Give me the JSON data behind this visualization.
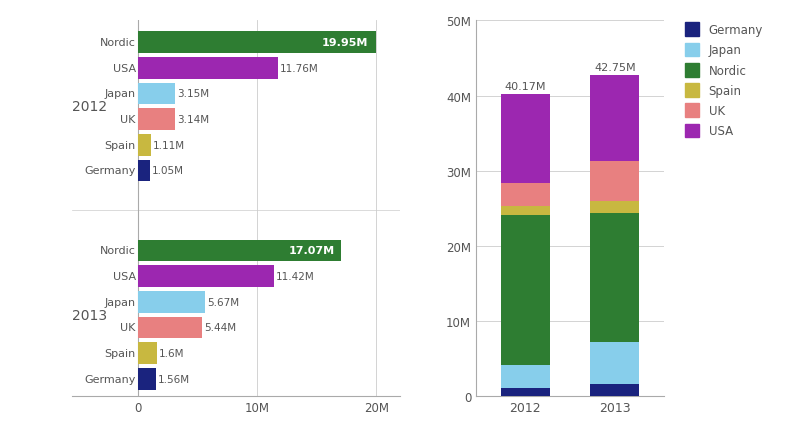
{
  "regions": [
    "Nordic",
    "USA",
    "Japan",
    "UK",
    "Spain",
    "Germany"
  ],
  "years": [
    "2012",
    "2013"
  ],
  "data": {
    "2012": {
      "Nordic": 19.95,
      "USA": 11.76,
      "Japan": 3.15,
      "UK": 3.14,
      "Spain": 1.11,
      "Germany": 1.05
    },
    "2013": {
      "Nordic": 17.07,
      "USA": 11.42,
      "Japan": 5.67,
      "UK": 5.44,
      "Spain": 1.6,
      "Germany": 1.56
    }
  },
  "colors": {
    "Nordic": "#2e7d32",
    "USA": "#9c27b0",
    "Japan": "#87ceeb",
    "UK": "#e88080",
    "Spain": "#c8b840",
    "Germany": "#1a237e"
  },
  "bar_labels": {
    "2012": {
      "Nordic": "19.95M",
      "USA": "11.76M",
      "Japan": "3.15M",
      "UK": "3.14M",
      "Spain": "1.11M",
      "Germany": "1.05M"
    },
    "2013": {
      "Nordic": "17.07M",
      "USA": "11.42M",
      "Japan": "5.67M",
      "UK": "5.44M",
      "Spain": "1.6M",
      "Germany": "1.56M"
    }
  },
  "stacked_totals": {
    "2012": "40.17M",
    "2013": "42.75M"
  },
  "stacked_total_vals": {
    "2012": 40.17,
    "2013": 42.75
  },
  "legend_order_left": [
    "Nordic",
    "USA",
    "Japan",
    "UK",
    "Spain",
    "Germany"
  ],
  "legend_order_right": [
    "Germany",
    "Japan",
    "Nordic",
    "Spain",
    "UK",
    "USA"
  ],
  "bg_color": "#ffffff",
  "grid_color": "#cccccc",
  "text_color": "#555555",
  "stack_order": [
    "Germany",
    "Japan",
    "Nordic",
    "Spain",
    "UK",
    "USA"
  ]
}
